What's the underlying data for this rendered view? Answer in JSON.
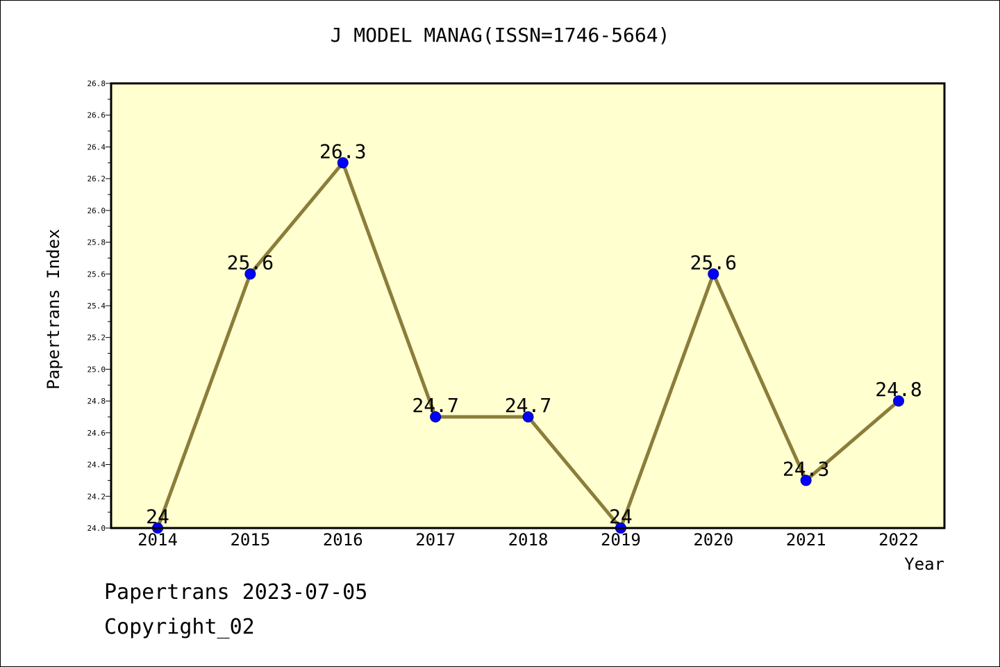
{
  "chart_data": {
    "type": "line",
    "title": "J MODEL MANAG(ISSN=1746-5664)",
    "xlabel": "Year",
    "ylabel": "Papertrans Index",
    "categories": [
      "2014",
      "2015",
      "2016",
      "2017",
      "2018",
      "2019",
      "2020",
      "2021",
      "2022"
    ],
    "values": [
      24.0,
      25.6,
      26.3,
      24.7,
      24.7,
      24.0,
      25.6,
      24.3,
      24.8
    ],
    "data_labels": [
      "24",
      "25.6",
      "26.3",
      "24.7",
      "24.7",
      "24",
      "25.6",
      "24.3",
      "24.8"
    ],
    "ylim": [
      24.0,
      26.8
    ],
    "yticks": [
      "24.0",
      "24.2",
      "24.4",
      "24.6",
      "24.8",
      "25.0",
      "25.2",
      "25.4",
      "25.6",
      "25.8",
      "26.0",
      "26.2",
      "26.4",
      "26.6",
      "26.8"
    ],
    "grid": false,
    "colors": {
      "plot_background": "#ffffd0",
      "line": "#8b7d3a",
      "marker": "#0000ff"
    }
  },
  "footer": {
    "line1": "Papertrans 2023-07-05",
    "line2": "Copyright_02"
  }
}
